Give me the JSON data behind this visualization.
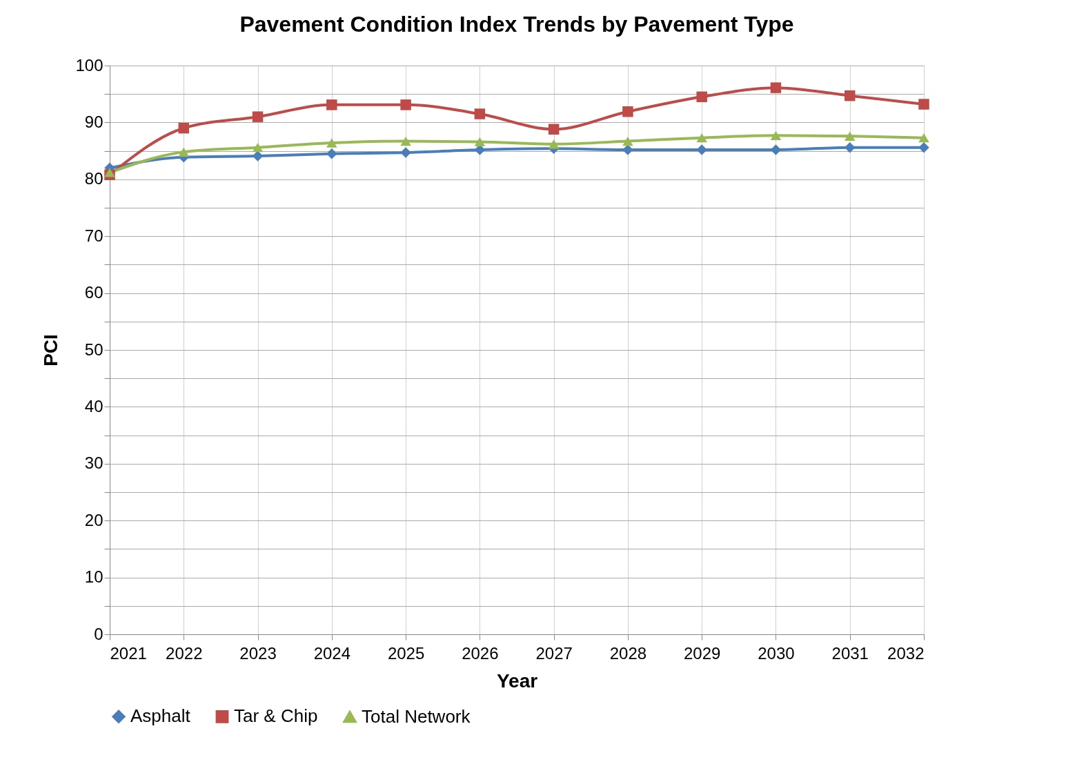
{
  "chart_data": {
    "type": "line",
    "title": "Pavement Condition Index Trends by Pavement Type",
    "xlabel": "Year",
    "ylabel": "PCI",
    "categories": [
      "2021",
      "2022",
      "2023",
      "2024",
      "2025",
      "2026",
      "2027",
      "2028",
      "2029",
      "2030",
      "2031",
      "2032"
    ],
    "series": [
      {
        "name": "Asphalt",
        "color": "#4a7ebb",
        "marker": "diamond",
        "values": [
          82.0,
          83.9,
          84.1,
          84.5,
          84.7,
          85.2,
          85.4,
          85.2,
          85.2,
          85.2,
          85.6,
          85.6
        ]
      },
      {
        "name": "Tar & Chip",
        "color": "#be4b48",
        "marker": "square",
        "values": [
          80.8,
          89.0,
          91.0,
          93.1,
          93.1,
          91.5,
          88.8,
          91.9,
          94.5,
          96.1,
          94.7,
          93.2
        ]
      },
      {
        "name": "Total Network",
        "color": "#98b954",
        "marker": "triangle",
        "values": [
          81.2,
          84.8,
          85.6,
          86.4,
          86.7,
          86.6,
          86.2,
          86.7,
          87.3,
          87.7,
          87.6,
          87.3
        ]
      }
    ],
    "ylim": [
      0,
      100
    ],
    "yticks": [
      0,
      {
        "value": 5,
        "label": null
      },
      10,
      {
        "value": 15,
        "label": null
      },
      20,
      {
        "value": 25,
        "label": null
      },
      30,
      {
        "value": 35,
        "label": null
      },
      40,
      {
        "value": 45,
        "label": null
      },
      50,
      {
        "value": 55,
        "label": null
      },
      60,
      {
        "value": 65,
        "label": null
      },
      70,
      {
        "value": 75,
        "label": null
      },
      80,
      {
        "value": 85,
        "label": null
      },
      90,
      {
        "value": 95,
        "label": null
      },
      100
    ],
    "grid": true,
    "legend": "bottom"
  }
}
